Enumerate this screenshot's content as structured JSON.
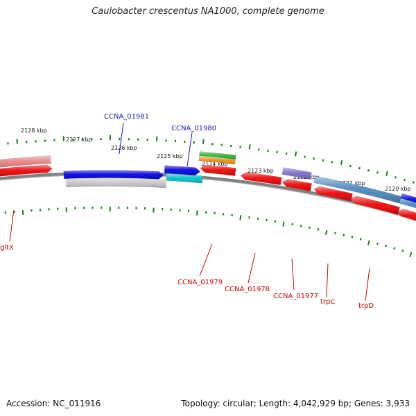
{
  "title": "Caulobacter crescentus NA1000, complete genome",
  "footer": {
    "accession": "Accession: NC_011916",
    "summary": "Topology: circular; Length: 4,042,929 bp; Genes: 3,933"
  },
  "colors": {
    "backbone": "#808080",
    "tick": "#1a7a1a",
    "forward_label": "#1a1aaa",
    "reverse_label": "#cc0000",
    "gene_red": "#ee0000",
    "gene_pink": "#e98080",
    "gene_blue": "#0000dd",
    "gene_gray": "#c4c4c4",
    "gene_cyan": "#00bfc8",
    "gene_orange": "#f0900a",
    "gene_green": "#2bb52b",
    "gene_purple": "#7a6acb",
    "gene_steel": "#4a86be"
  },
  "kbp_ticks": [
    "2128 kbp",
    "2127 kbp",
    "2126 kbp",
    "2125 kbp",
    "2124 kbp",
    "2123 kbp",
    "2122 kbp",
    "2121 kbp",
    "2120 kbp"
  ],
  "gene_labels": {
    "CCNA_01981": "CCNA_01981",
    "CCNA_01980": "CCNA_01980",
    "gltX": "gltX",
    "CCNA_01979": "CCNA_01979",
    "CCNA_01978": "CCNA_01978",
    "CCNA_01977": "CCNA_01977",
    "trpC": "trpC",
    "trpD": "trpD"
  }
}
